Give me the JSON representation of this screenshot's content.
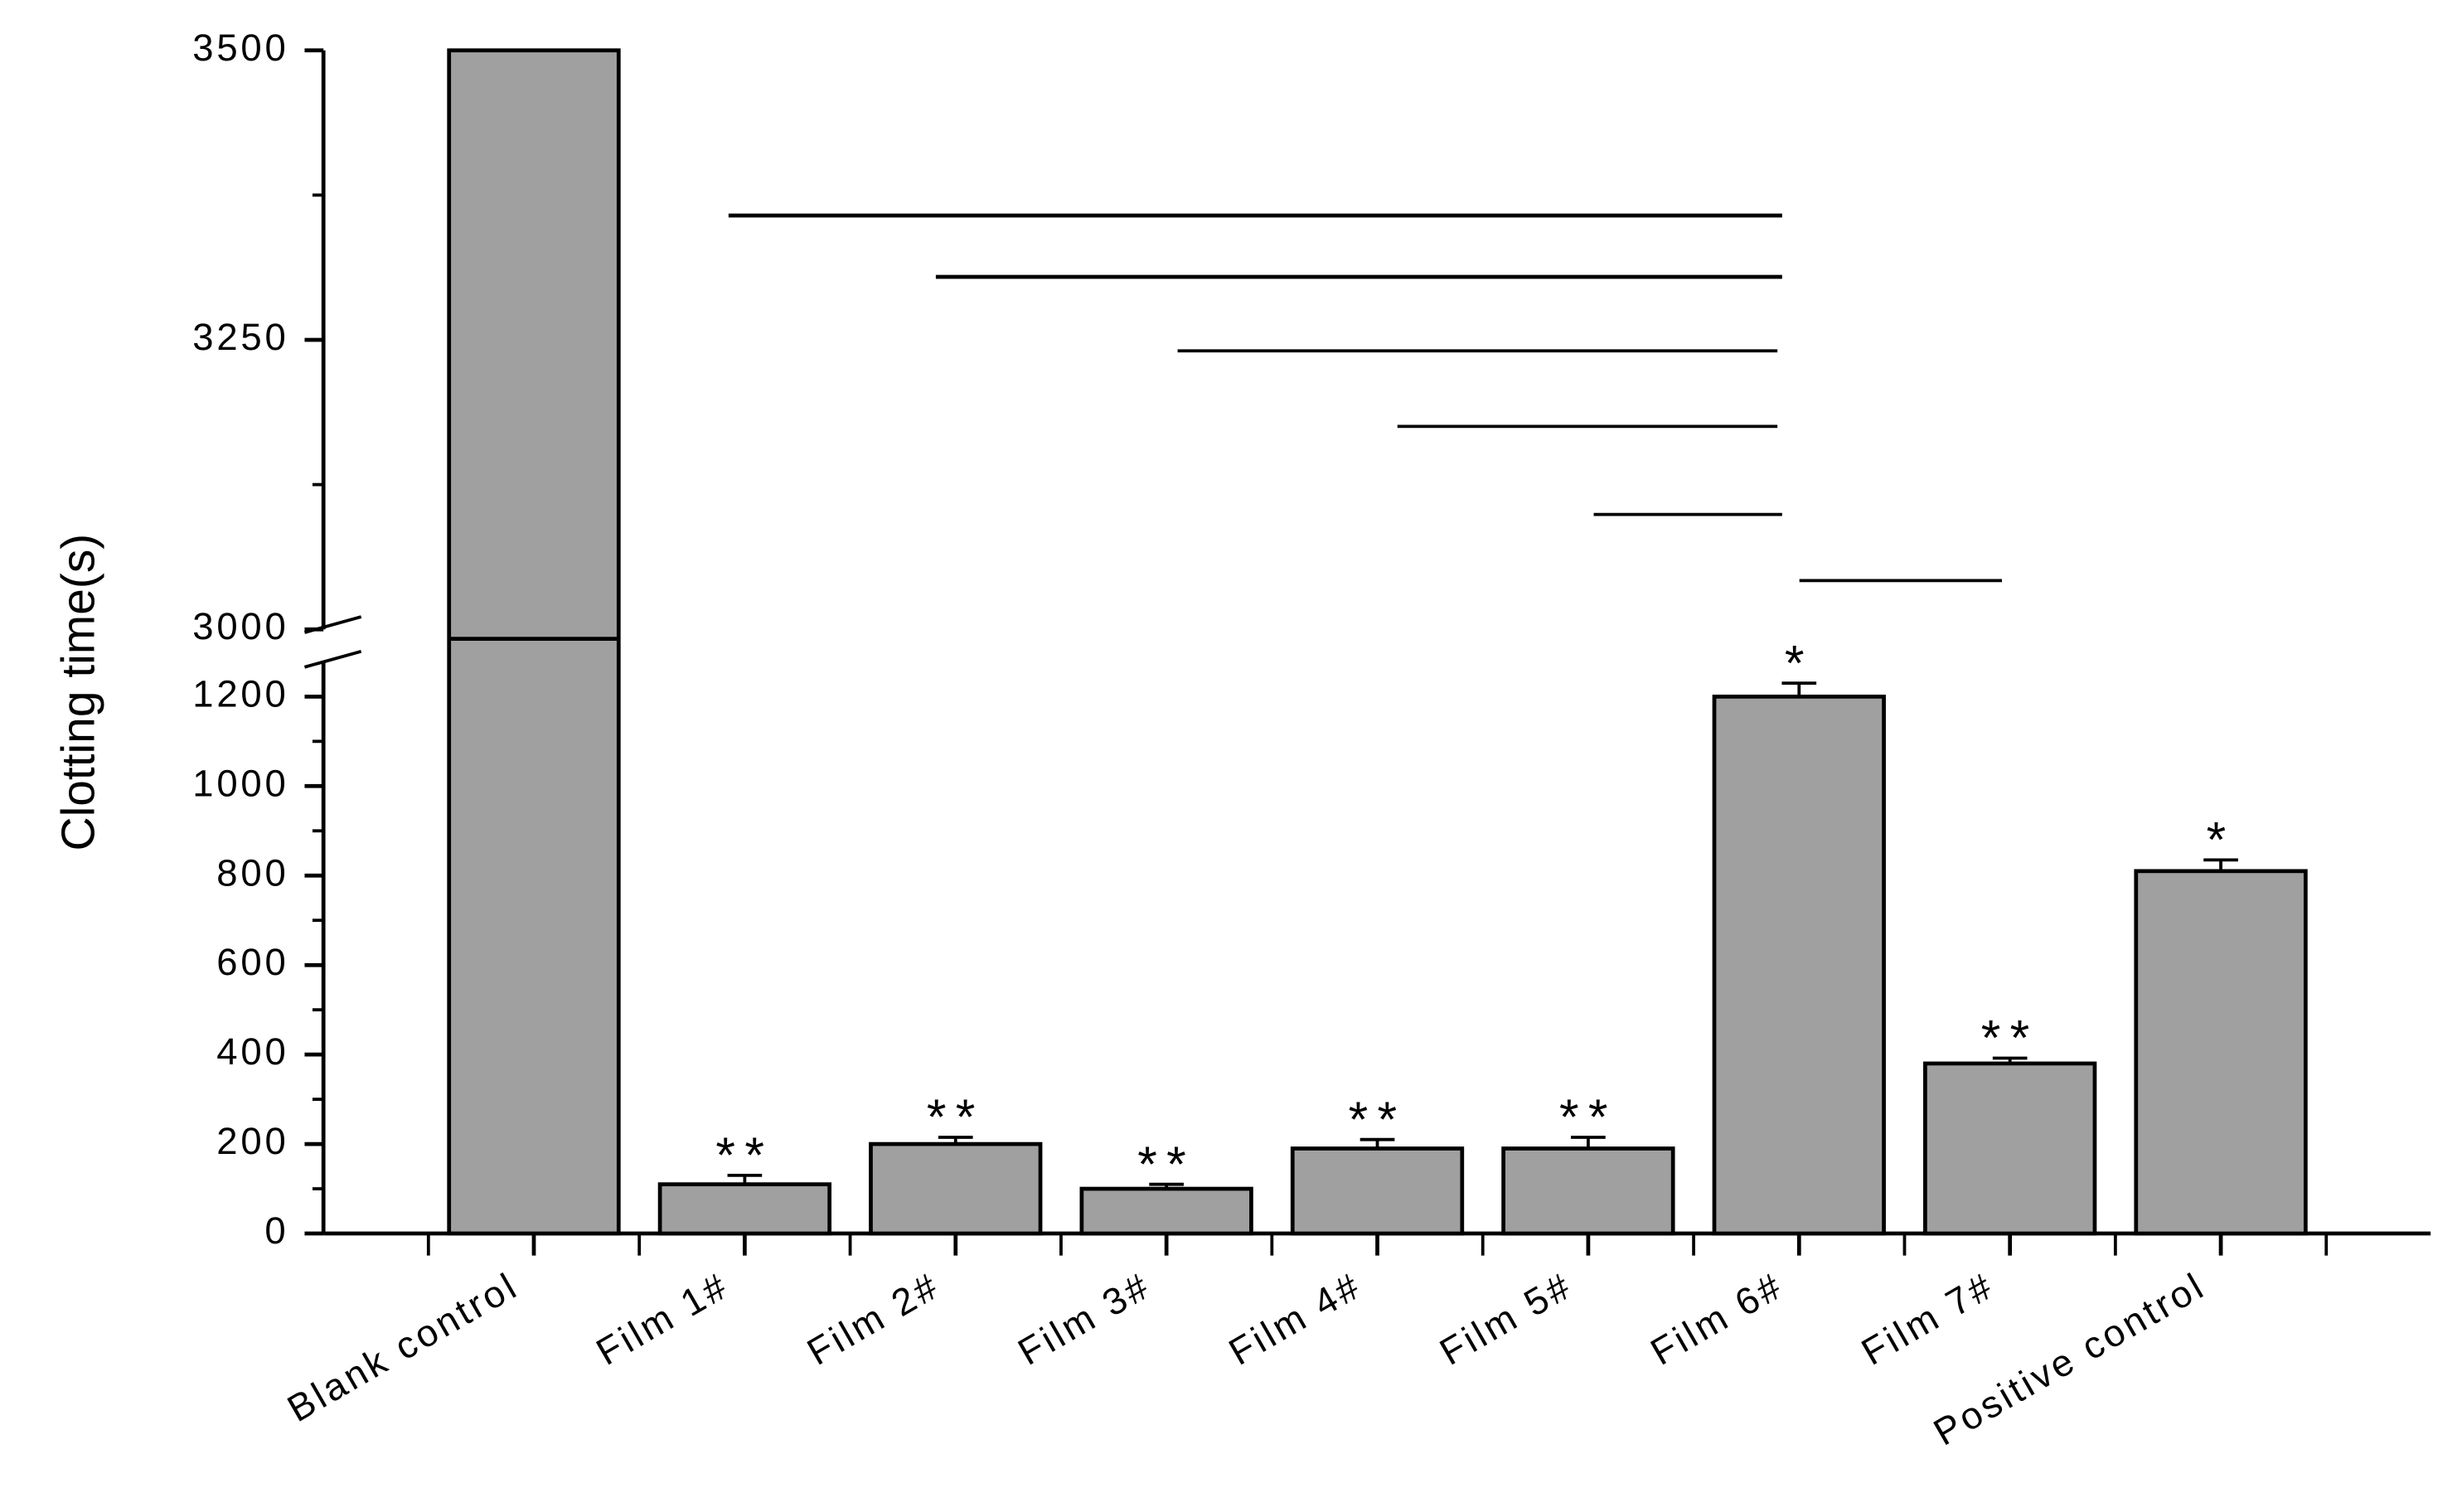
{
  "chart_data": {
    "type": "bar",
    "y_label": "Clotting time(s)",
    "categories": [
      "Blank control",
      "Film 1#",
      "Film 2#",
      "Film 3#",
      "Film 4#",
      "Film 5#",
      "Film 6#",
      "Film 7#",
      "Positive control"
    ],
    "values": [
      3500,
      110,
      200,
      100,
      190,
      190,
      1200,
      380,
      810
    ],
    "errors": [
      null,
      20,
      15,
      10,
      20,
      25,
      30,
      12,
      25
    ],
    "annotations": [
      null,
      "**",
      "**",
      "**",
      "**",
      "**",
      "*",
      "**",
      "*"
    ],
    "color": "#a0a0a0",
    "ylim": [
      0,
      1280
    ],
    "yticks": [
      0,
      200,
      400,
      600,
      800,
      1000,
      1200
    ],
    "y_upper_lim": [
      3000,
      3500
    ],
    "y_upper_ticks": [
      3000,
      3250,
      3500
    ],
    "axis_break": true
  }
}
